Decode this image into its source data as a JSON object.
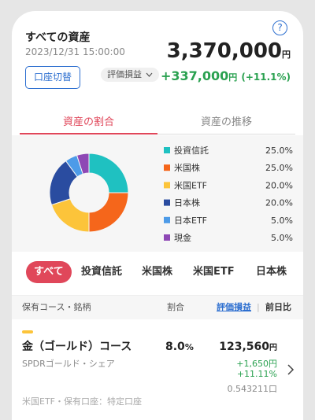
{
  "header": {
    "title": "すべての資産",
    "help": "?",
    "datetime": "2023/12/31 15:00:00",
    "total": "3,370,000",
    "total_unit": "円",
    "switch_button": "口座切替",
    "gain_selector": "評価損益",
    "gain": "+337,000",
    "gain_unit": "円",
    "gain_pct": "(+11.1%)"
  },
  "tabs": [
    "資産の割合",
    "資産の推移"
  ],
  "chart_data": {
    "type": "pie",
    "categories": [
      "投資信託",
      "米国株",
      "米国ETF",
      "日本株",
      "日本ETF",
      "現金"
    ],
    "values": [
      25,
      25,
      20,
      20,
      5,
      5
    ],
    "value_labels": [
      "25.0%",
      "25.0%",
      "20.0%",
      "20.0%",
      "5.0%",
      "5.0%"
    ],
    "colors": [
      "#1fc1c1",
      "#f5661b",
      "#fcc43a",
      "#2a4ca0",
      "#4d9be8",
      "#8e48b5"
    ]
  },
  "filters": [
    "すべて",
    "投資信託",
    "米国株",
    "米国ETF",
    "日本株"
  ],
  "table_header": {
    "name": "保有コース・銘柄",
    "ratio": "割合",
    "gain": "評価損益",
    "separator": "|",
    "daily": "前日比"
  },
  "holding": {
    "name": "金（ゴールド）コース",
    "ratio": "8.0",
    "ratio_unit": "%",
    "amount": "123,560",
    "amount_unit": "円",
    "sub": "SPDRゴールド・シェア",
    "gain": "+1,650円",
    "gain_pct": "+11.11%",
    "units": "0.543211口",
    "footer": "米国ETF・保有口座：特定口座"
  }
}
